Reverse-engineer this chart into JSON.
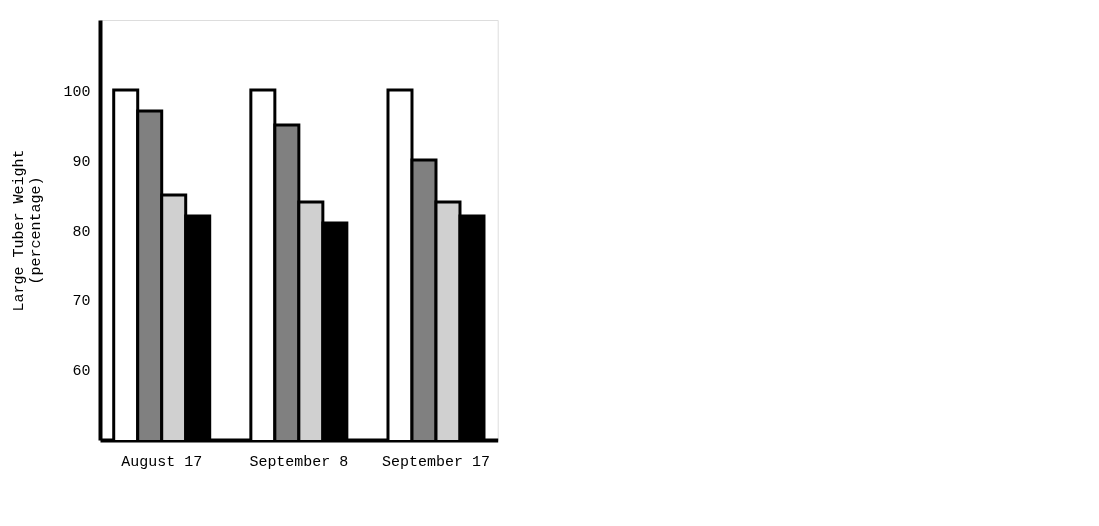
{
  "chart_data": {
    "type": "bar",
    "ylabel": "Large Tuber Weight\n(percentage)",
    "categories": [
      "August 17",
      "September 8",
      "September 17"
    ],
    "series": [
      {
        "color": "#ffffff",
        "values": [
          100,
          100,
          100
        ]
      },
      {
        "color": "#808080",
        "values": [
          97,
          95,
          90
        ]
      },
      {
        "color": "#d0d0d0",
        "values": [
          85,
          84,
          84
        ]
      },
      {
        "color": "#000000",
        "values": [
          82,
          81,
          82
        ]
      }
    ],
    "ylim": [
      50,
      110
    ],
    "yticks": [
      60,
      70,
      80,
      90,
      100
    ],
    "grid": false,
    "legend": false
  }
}
